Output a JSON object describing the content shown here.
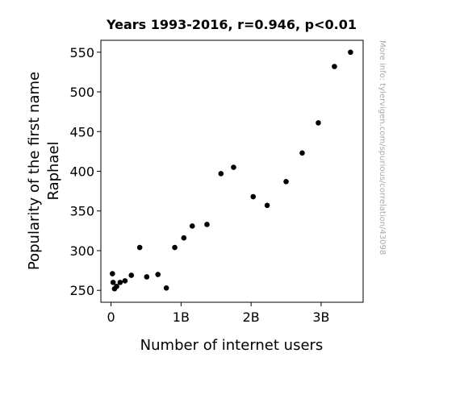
{
  "chart_data": {
    "type": "scatter",
    "title": "Years 1993-2016, r=0.946, p<0.01",
    "xlabel": "Number of internet users",
    "ylabel_lines": [
      "Popularity of the first name",
      "Raphael"
    ],
    "watermark": "More info: tylervigen.com/spurious/correlation/43098",
    "xlim": [
      -0.145,
      3.6
    ],
    "ylim": [
      235,
      565
    ],
    "x_ticks": [
      {
        "value": 0,
        "label": "0"
      },
      {
        "value": 1,
        "label": "1B"
      },
      {
        "value": 2,
        "label": "2B"
      },
      {
        "value": 3,
        "label": "3B"
      }
    ],
    "y_ticks": [
      {
        "value": 250,
        "label": "250"
      },
      {
        "value": 300,
        "label": "300"
      },
      {
        "value": 350,
        "label": "350"
      },
      {
        "value": 400,
        "label": "400"
      },
      {
        "value": 450,
        "label": "450"
      },
      {
        "value": 500,
        "label": "500"
      },
      {
        "value": 550,
        "label": "550"
      }
    ],
    "x_unit": "billions of users",
    "point_color": "#000000",
    "points": [
      {
        "x": 0.02,
        "y": 271
      },
      {
        "x": 0.03,
        "y": 260
      },
      {
        "x": 0.05,
        "y": 252
      },
      {
        "x": 0.08,
        "y": 255
      },
      {
        "x": 0.13,
        "y": 260
      },
      {
        "x": 0.2,
        "y": 262
      },
      {
        "x": 0.29,
        "y": 269
      },
      {
        "x": 0.41,
        "y": 304
      },
      {
        "x": 0.51,
        "y": 267
      },
      {
        "x": 0.67,
        "y": 270
      },
      {
        "x": 0.79,
        "y": 253
      },
      {
        "x": 0.91,
        "y": 304
      },
      {
        "x": 1.04,
        "y": 316
      },
      {
        "x": 1.16,
        "y": 331
      },
      {
        "x": 1.37,
        "y": 333
      },
      {
        "x": 1.57,
        "y": 397
      },
      {
        "x": 1.75,
        "y": 405
      },
      {
        "x": 2.03,
        "y": 368
      },
      {
        "x": 2.23,
        "y": 357
      },
      {
        "x": 2.5,
        "y": 387
      },
      {
        "x": 2.73,
        "y": 423
      },
      {
        "x": 2.96,
        "y": 461
      },
      {
        "x": 3.19,
        "y": 532
      },
      {
        "x": 3.42,
        "y": 550
      }
    ]
  }
}
